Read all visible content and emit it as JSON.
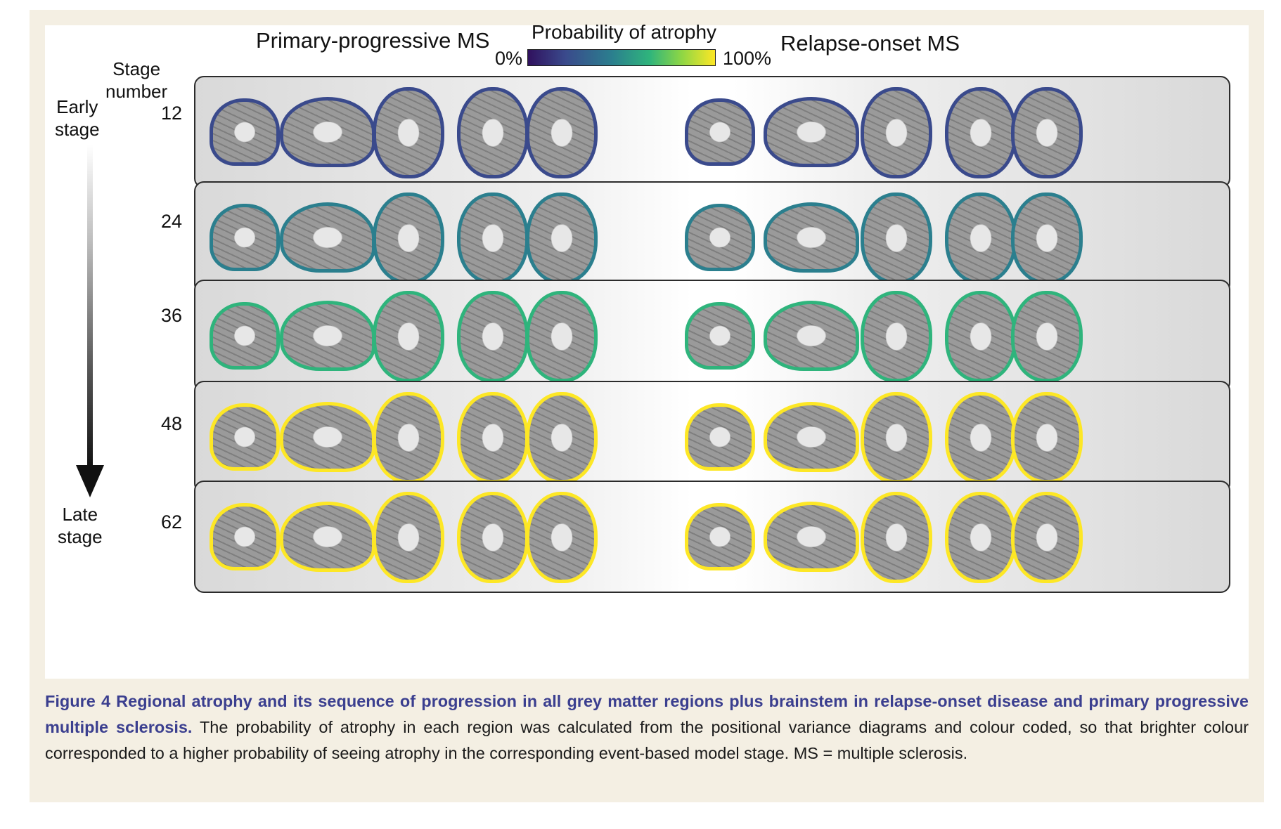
{
  "figure": {
    "left_header": "Primary-progressive MS",
    "right_header": "Relapse-onset MS",
    "colorbar": {
      "title": "Probability of atrophy",
      "min_label": "0%",
      "max_label": "100%",
      "colormap": [
        "#30115e",
        "#3a4a8c",
        "#2b7f8e",
        "#2fb47c",
        "#8dd645",
        "#fde725"
      ]
    },
    "stage_header": [
      "Stage",
      "number"
    ],
    "early_label": [
      "Early",
      "stage"
    ],
    "late_label": [
      "Late",
      "stage"
    ],
    "stages": [
      "12",
      "24",
      "36",
      "48",
      "62"
    ],
    "views_per_group": [
      "coronal",
      "sagittal",
      "axial",
      "axial",
      "axial"
    ]
  },
  "caption": {
    "title": "Figure 4  Regional atrophy and its sequence of progression in all grey matter regions plus brainstem in relapse-onset disease and primary progressive multiple sclerosis.",
    "body": " The probability of atrophy in each region was calculated from the positional variance diagrams and colour coded, so that brighter colour corresponded to a higher probability of seeing atrophy in the corresponding event-based model stage. MS = multiple sclerosis."
  }
}
